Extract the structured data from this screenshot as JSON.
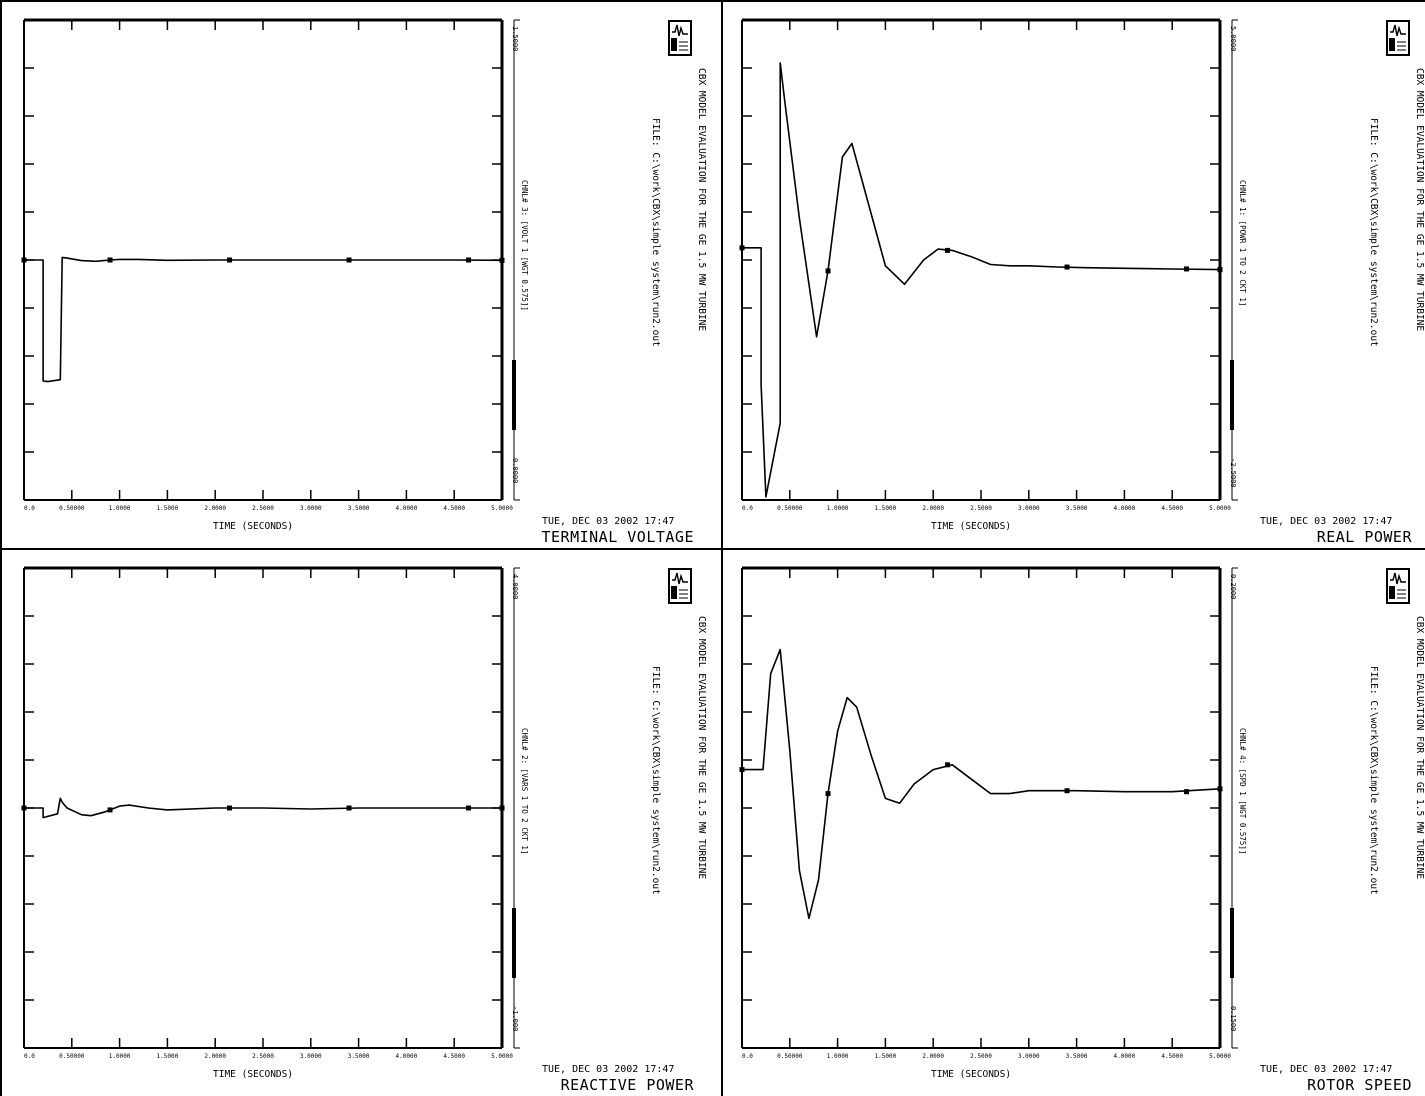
{
  "page": {
    "plot_title": "CBX MODEL EVALUATION FOR THE GE 1.5 MW TURBINE",
    "file_label": "FILE: C:\\work\\CBX\\simple system\\run2.out",
    "date": "TUE, DEC 03 2002   17:47",
    "xlabel": "TIME (SECONDS)",
    "logo_icon": "pss-e-logo-icon"
  },
  "chart_data": [
    {
      "type": "line",
      "title": "TERMINAL VOLTAGE",
      "xlabel": "TIME (SECONDS)",
      "xlim": [
        0,
        5
      ],
      "ylim": [
        0.0,
        1.5
      ],
      "y_range_top": "1.5000",
      "y_range_bottom": "0.0000",
      "channel_annotation": "CHNL# 3: [VOLT      1 [WGT  0.575]]",
      "x_tick_labels": [
        "0.0",
        "0.50000",
        "1.0000",
        "1.5000",
        "2.0000",
        "2.5000",
        "3.0000",
        "3.5000",
        "4.0000",
        "4.5000",
        "5.0000"
      ],
      "series": [
        {
          "x": [
            0,
            0.2,
            0.2,
            0.25,
            0.38,
            0.4,
            0.45,
            0.6,
            0.75,
            0.9,
            1.0,
            1.2,
            1.5,
            2.0,
            2.5,
            3.0,
            3.5,
            4.0,
            4.5,
            5.0
          ],
          "y": [
            0.75,
            0.75,
            0.372,
            0.37,
            0.376,
            0.758,
            0.756,
            0.748,
            0.746,
            0.75,
            0.752,
            0.752,
            0.749,
            0.75,
            0.75,
            0.75,
            0.75,
            0.75,
            0.75,
            0.749
          ],
          "markers": [
            [
              0,
              0.75
            ],
            [
              0.9,
              0.75
            ],
            [
              2.15,
              0.75
            ],
            [
              3.4,
              0.75
            ],
            [
              4.65,
              0.75
            ],
            [
              5.0,
              0.749
            ]
          ]
        }
      ]
    },
    {
      "type": "line",
      "title": "REAL POWER",
      "xlabel": "TIME (SECONDS)",
      "xlim": [
        0,
        5
      ],
      "ylim": [
        -2.5,
        5.0
      ],
      "y_range_top": "5.0000",
      "y_range_bottom": "-2.5000",
      "channel_annotation": "CHNL# 1: [POWR      1 TO    2 CKT 1]",
      "x_tick_labels": [
        "0.0",
        "0.50000",
        "1.0000",
        "1.5000",
        "2.0000",
        "2.5000",
        "3.0000",
        "3.5000",
        "4.0000",
        "4.5000",
        "5.0000"
      ],
      "series": [
        {
          "x": [
            0,
            0.2,
            0.2,
            0.25,
            0.4,
            0.4,
            0.45,
            0.6,
            0.78,
            0.9,
            1.05,
            1.15,
            1.3,
            1.5,
            1.7,
            1.9,
            2.05,
            2.2,
            2.4,
            2.6,
            2.8,
            3.0,
            3.3,
            3.6,
            4.0,
            4.5,
            5.0
          ],
          "y": [
            1.44,
            1.44,
            -0.7,
            -2.45,
            -1.3,
            4.33,
            3.7,
            1.9,
            0.05,
            1.08,
            2.86,
            3.07,
            2.25,
            1.16,
            0.87,
            1.25,
            1.42,
            1.4,
            1.3,
            1.18,
            1.16,
            1.16,
            1.14,
            1.13,
            1.12,
            1.11,
            1.1
          ],
          "markers": [
            [
              0,
              1.44
            ],
            [
              0.9,
              1.08
            ],
            [
              2.15,
              1.4
            ],
            [
              3.4,
              1.14
            ],
            [
              4.65,
              1.11
            ],
            [
              5.0,
              1.1
            ]
          ]
        }
      ]
    },
    {
      "type": "line",
      "title": "REACTIVE POWER",
      "xlabel": "TIME (SECONDS)",
      "xlim": [
        0,
        5
      ],
      "ylim": [
        -1.0,
        4.0
      ],
      "y_range_top": "4.0000",
      "y_range_bottom": "-1.000",
      "channel_annotation": "CHNL# 2: [VARS      1 TO    2 CKT 1]",
      "x_tick_labels": [
        "0.0",
        "0.50000",
        "1.0000",
        "1.5000",
        "2.0000",
        "2.5000",
        "3.0000",
        "3.5000",
        "4.0000",
        "4.5000",
        "5.0000"
      ],
      "series": [
        {
          "x": [
            0,
            0.2,
            0.2,
            0.35,
            0.38,
            0.4,
            0.45,
            0.6,
            0.7,
            0.85,
            1.0,
            1.1,
            1.3,
            1.5,
            2.0,
            2.5,
            3.0,
            3.5,
            4.0,
            4.5,
            5.0
          ],
          "y": [
            1.5,
            1.5,
            1.4,
            1.44,
            1.6,
            1.56,
            1.5,
            1.43,
            1.42,
            1.46,
            1.52,
            1.53,
            1.5,
            1.48,
            1.5,
            1.5,
            1.49,
            1.5,
            1.5,
            1.5,
            1.5
          ],
          "markers": [
            [
              0,
              1.5
            ],
            [
              0.9,
              1.48
            ],
            [
              2.15,
              1.5
            ],
            [
              3.4,
              1.5
            ],
            [
              4.65,
              1.5
            ],
            [
              5.0,
              1.5
            ]
          ]
        }
      ]
    },
    {
      "type": "line",
      "title": "ROTOR SPEED",
      "xlabel": "TIME (SECONDS)",
      "xlim": [
        0,
        5
      ],
      "ylim": [
        0.15,
        0.2
      ],
      "y_range_top": "0.2000",
      "y_range_bottom": "0.1500",
      "channel_annotation": "CHNL# 4: [SPD     1 [WGT  0.575]]",
      "x_tick_labels": [
        "0.0",
        "0.50000",
        "1.0000",
        "1.5000",
        "2.0000",
        "2.5000",
        "3.0000",
        "3.5000",
        "4.0000",
        "4.5000",
        "5.0000"
      ],
      "series": [
        {
          "x": [
            0,
            0.22,
            0.3,
            0.4,
            0.5,
            0.6,
            0.7,
            0.8,
            0.9,
            1.0,
            1.1,
            1.2,
            1.35,
            1.5,
            1.65,
            1.8,
            2.0,
            2.2,
            2.4,
            2.6,
            2.8,
            3.0,
            3.5,
            4.0,
            4.5,
            5.0
          ],
          "y": [
            0.179,
            0.179,
            0.189,
            0.1915,
            0.181,
            0.1685,
            0.1635,
            0.1675,
            0.1765,
            0.183,
            0.1865,
            0.1855,
            0.1805,
            0.176,
            0.1755,
            0.1775,
            0.179,
            0.1795,
            0.178,
            0.1765,
            0.1765,
            0.1768,
            0.1768,
            0.1767,
            0.1767,
            0.177
          ],
          "markers": [
            [
              0,
              0.179
            ],
            [
              0.9,
              0.1765
            ],
            [
              2.15,
              0.1795
            ],
            [
              3.4,
              0.1768
            ],
            [
              4.65,
              0.1767
            ],
            [
              5.0,
              0.177
            ]
          ]
        }
      ]
    }
  ]
}
